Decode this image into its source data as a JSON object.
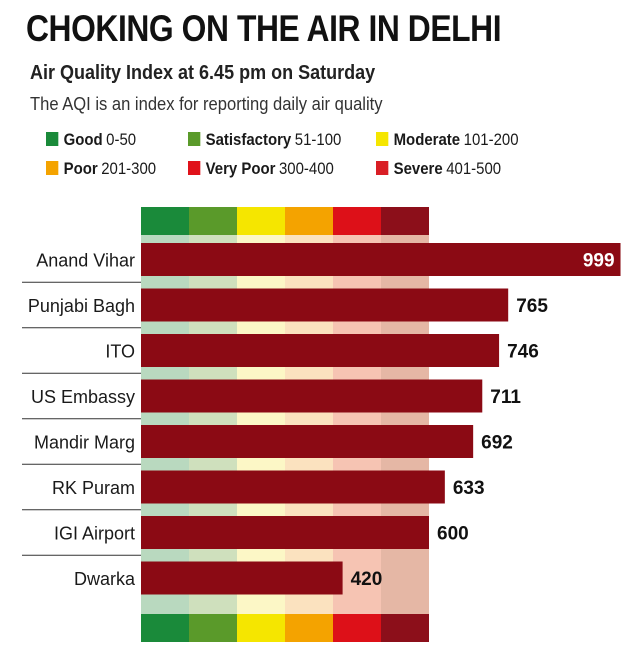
{
  "header": {
    "title": "CHOKING ON THE AIR IN DELHI",
    "subtitle": "Air Quality Index at 6.45 pm on Saturday",
    "description": "The AQI is an index for reporting daily air quality"
  },
  "legend": [
    {
      "name": "Good",
      "range": "0-50",
      "color": "#1a8a3a"
    },
    {
      "name": "Satisfactory",
      "range": "51-100",
      "color": "#5a9a2a"
    },
    {
      "name": "Moderate",
      "range": "101-200",
      "color": "#f5e600"
    },
    {
      "name": "Poor",
      "range": "201-300",
      "color": "#f4a300"
    },
    {
      "name": "Very Poor",
      "range": "300-400",
      "color": "#e0121a"
    },
    {
      "name": "Severe",
      "range": "401-500",
      "color": "#d91e25"
    }
  ],
  "scale_band": {
    "colors": [
      "#1a8a3a",
      "#5a9a2a",
      "#f5e600",
      "#f4a300",
      "#dd1018",
      "#8c0f1a"
    ],
    "stripe_colors": [
      "#b9d9bf",
      "#cfe0bd",
      "#fcf7c6",
      "#fbe2bf",
      "#f6c4b3",
      "#e5b7a5"
    ]
  },
  "chart_data": {
    "type": "bar",
    "orientation": "horizontal",
    "categories": [
      "Anand Vihar",
      "Punjabi Bagh",
      "ITO",
      "US Embassy",
      "Mandir Marg",
      "RK Puram",
      "IGI Airport",
      "Dwarka"
    ],
    "values": [
      999,
      765,
      746,
      711,
      692,
      633,
      600,
      420
    ],
    "bar_color": "#8b0a14"
  }
}
